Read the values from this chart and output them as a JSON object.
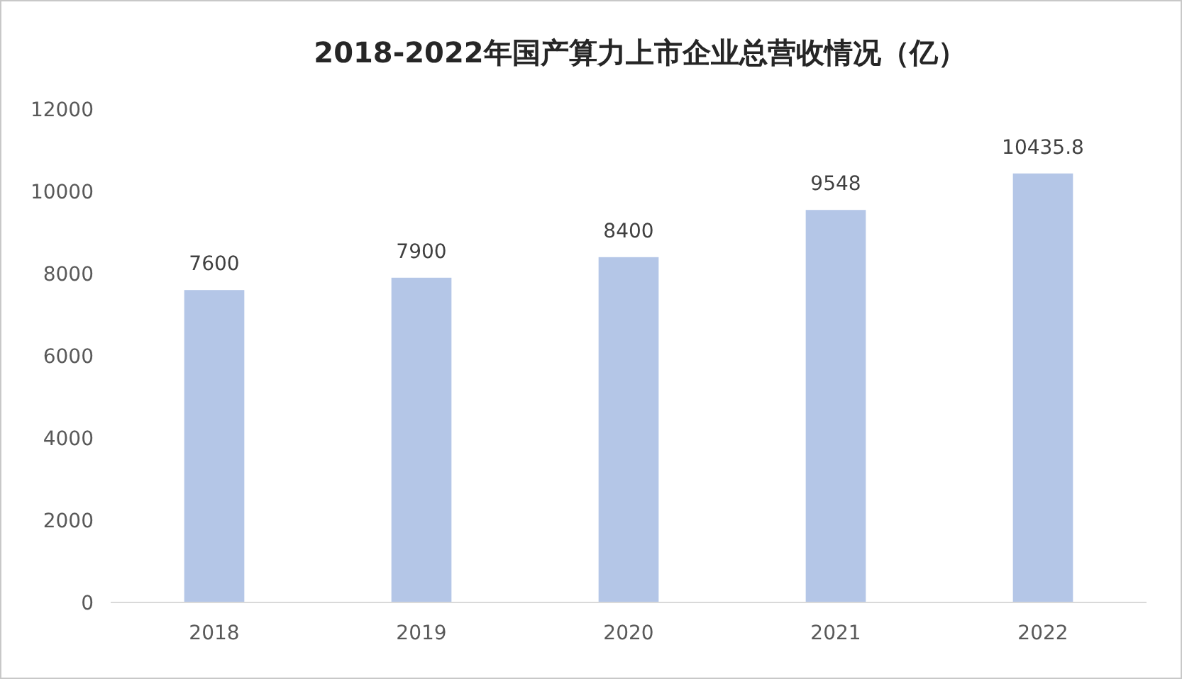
{
  "chart_data": {
    "type": "bar",
    "title": "2018-2022年国产算力上市企业总营收情况（亿）",
    "categories": [
      "2018",
      "2019",
      "2020",
      "2021",
      "2022"
    ],
    "values": [
      7600,
      7900,
      8400,
      9548,
      10435.8
    ],
    "color": "#b4c6e7",
    "ylim": [
      0,
      12000
    ],
    "yticks": [
      0,
      2000,
      4000,
      6000,
      8000,
      10000,
      12000
    ],
    "data_labels": true
  }
}
